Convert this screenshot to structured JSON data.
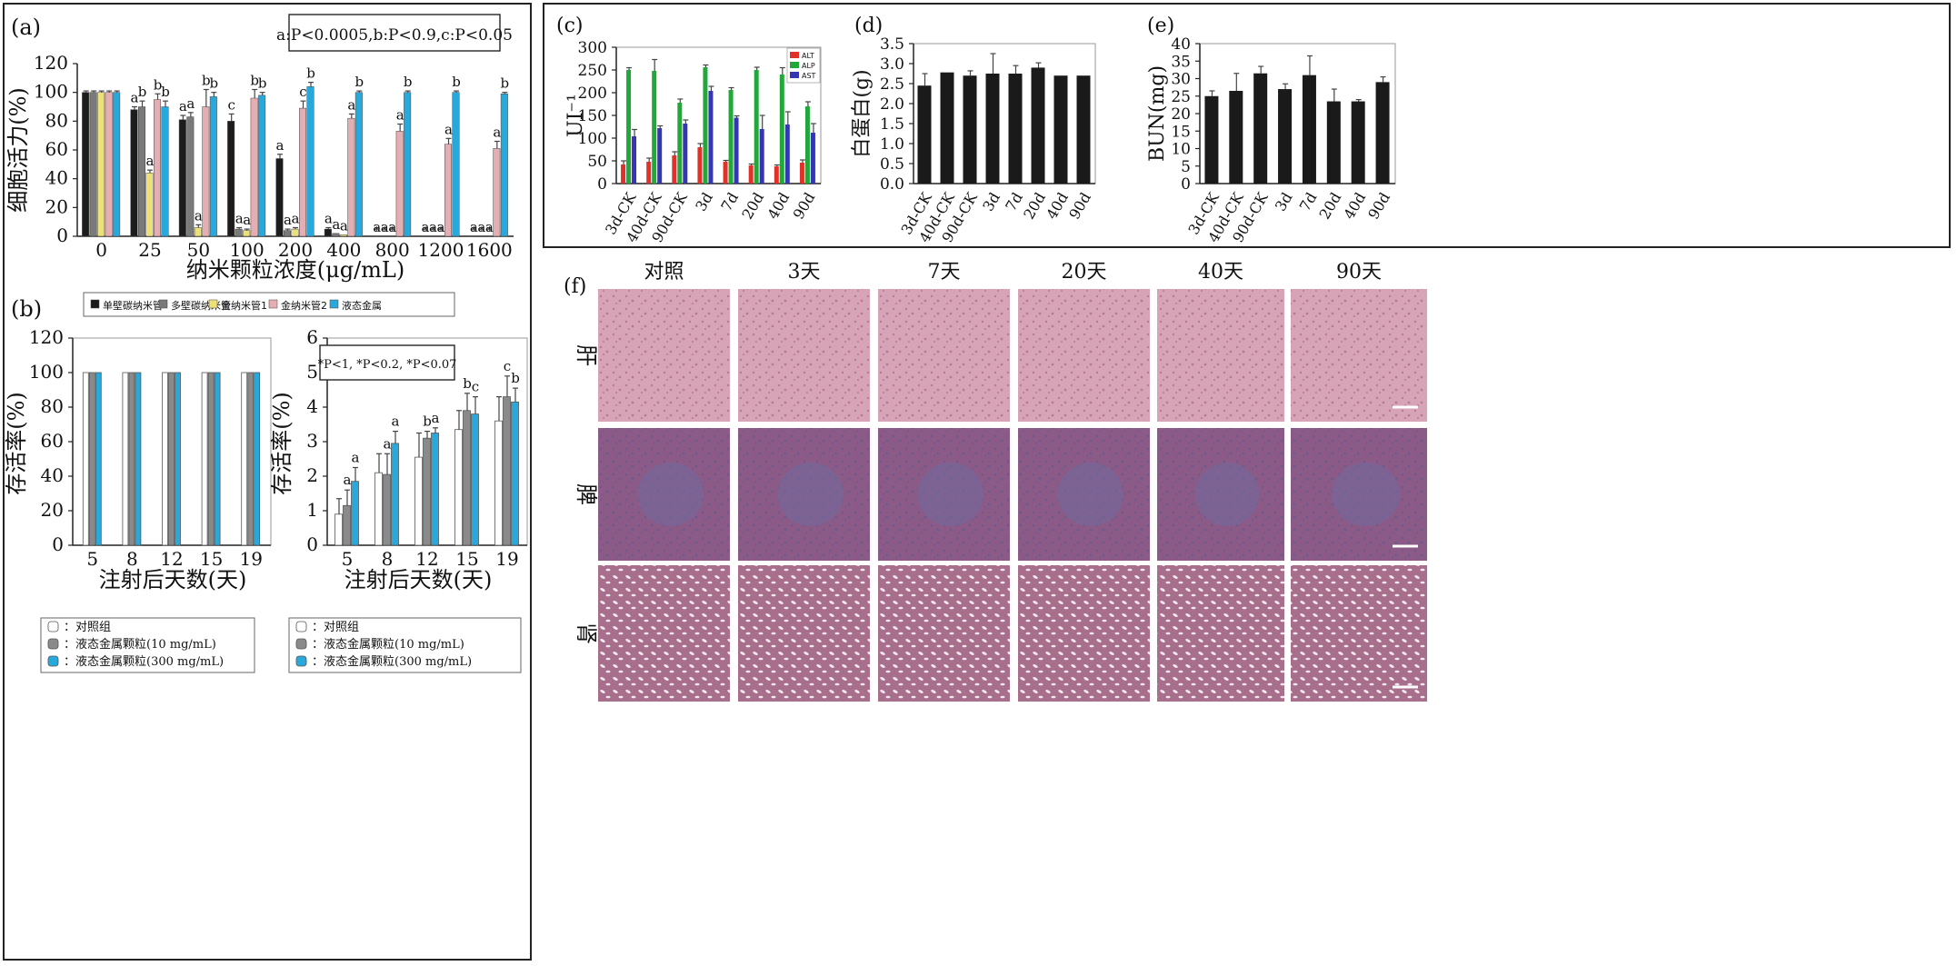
{
  "colors": {
    "swcnt": "#1c1c1c",
    "mwcnt": "#7a7a7a",
    "gnt1": "#ece07a",
    "gnt2": "#e4aeb2",
    "lm": "#29a8dc",
    "ctrl": "#ffffff",
    "lm10": "#8a8a8a",
    "lm300": "#29a8dc",
    "alt": "#e03228",
    "alp": "#22a83a",
    "ast": "#3636b4",
    "bar_black": "#1a1a1a",
    "tissue_liver": "#d7a3b6",
    "tissue_spleen": "#8c5a86",
    "tissue_kidney": "#a76f8c"
  },
  "panels": {
    "a": {
      "letter": "(a)",
      "pvalue_box": "a:P<0.0005,b:P<0.9,c:P<0.05",
      "legend": [
        "单壁碳纳米管",
        "多壁碳纳米管",
        "金纳米管1",
        "金纳米管2",
        "液态金属"
      ],
      "chart_data": {
        "type": "bar",
        "xlabel": "纳米颗粒浓度(μg/mL)",
        "ylabel": "细胞活力(%)",
        "categories": [
          "0",
          "25",
          "50",
          "100",
          "200",
          "400",
          "800",
          "1200",
          "1600"
        ],
        "ylim": [
          0,
          120
        ],
        "yticks": [
          "0",
          "20",
          "40",
          "60",
          "80",
          "100",
          "120"
        ],
        "series": [
          {
            "name": "单壁碳纳米管",
            "values": [
              100,
              88,
              81,
              80,
              54,
              5,
              0,
              0,
              0
            ],
            "errors": [
              1,
              2,
              3,
              5,
              3,
              1,
              0,
              0,
              0
            ],
            "sig": [
              "",
              "a",
              "a",
              "c",
              "a",
              "a",
              "a",
              "a",
              "a"
            ]
          },
          {
            "name": "多壁碳纳米管",
            "values": [
              100,
              90,
              83,
              5,
              4,
              2,
              0,
              0,
              0
            ],
            "errors": [
              1,
              4,
              3,
              1,
              1,
              0,
              0,
              0,
              0
            ],
            "sig": [
              "",
              "b",
              "a",
              "a",
              "a",
              "a",
              "a",
              "a",
              "a"
            ]
          },
          {
            "name": "金纳米管1",
            "values": [
              100,
              44,
              6,
              4,
              5,
              1,
              0,
              0,
              0
            ],
            "errors": [
              1,
              2,
              2,
              1,
              1,
              0,
              0,
              0,
              0
            ],
            "sig": [
              "",
              "a",
              "a",
              "a",
              "a",
              "a",
              "a",
              "a",
              "a"
            ]
          },
          {
            "name": "金纳米管2",
            "values": [
              100,
              95,
              90,
              96,
              89,
              82,
              73,
              64,
              61
            ],
            "errors": [
              1,
              4,
              12,
              6,
              5,
              3,
              5,
              4,
              5
            ],
            "sig": [
              "",
              "b",
              "b",
              "b",
              "c",
              "a",
              "a",
              "a",
              "a"
            ]
          },
          {
            "name": "液态金属",
            "values": [
              100,
              90,
              97,
              98,
              104,
              100,
              100,
              100,
              99
            ],
            "errors": [
              1,
              4,
              3,
              2,
              3,
              1,
              1,
              1,
              1
            ],
            "sig": [
              "",
              "b",
              "b",
              "b",
              "b",
              "b",
              "b",
              "b",
              "b"
            ]
          }
        ]
      }
    },
    "b": {
      "letter": "(b)",
      "left_chart": {
        "chart_data": {
          "type": "bar",
          "xlabel": "注射后天数(天)",
          "ylabel": "存活率(%)",
          "categories": [
            "5",
            "8",
            "12",
            "15",
            "19"
          ],
          "ylim": [
            0,
            120
          ],
          "yticks": [
            "0",
            "20",
            "40",
            "60",
            "80",
            "100",
            "120"
          ],
          "series": [
            {
              "name": "对照组",
              "values": [
                100,
                100,
                100,
                100,
                100
              ]
            },
            {
              "name": "液态金属颗粒(10 mg/mL)",
              "values": [
                100,
                100,
                100,
                100,
                100
              ]
            },
            {
              "name": "液态金属颗粒(300 mg/mL)",
              "values": [
                100,
                100,
                100,
                100,
                100
              ]
            }
          ]
        },
        "legend": [
          "对照组",
          "液态金属颗粒(10 mg/mL)",
          "液态金属颗粒(300 mg/mL)"
        ]
      },
      "right_chart": {
        "pvalue_box": "*P<1, *P<0.2, *P<0.07",
        "chart_data": {
          "type": "bar",
          "xlabel": "注射后天数(天)",
          "ylabel": "存活率(%)",
          "categories": [
            "5",
            "8",
            "12",
            "15",
            "19"
          ],
          "ylim": [
            0,
            6
          ],
          "yticks": [
            "0",
            "1",
            "2",
            "3",
            "4",
            "5",
            "6"
          ],
          "series": [
            {
              "name": "对照组",
              "values": [
                0.9,
                2.1,
                2.55,
                3.35,
                3.6
              ],
              "errors": [
                0.45,
                0.55,
                0.7,
                0.55,
                0.7
              ],
              "sig": [
                "",
                "",
                "",
                "",
                ""
              ]
            },
            {
              "name": "液态金属颗粒(10 mg/mL)",
              "values": [
                1.15,
                2.05,
                3.1,
                3.9,
                4.3
              ],
              "errors": [
                0.45,
                0.6,
                0.2,
                0.5,
                0.6
              ],
              "sig": [
                "a",
                "a",
                "b",
                "b",
                "c"
              ]
            },
            {
              "name": "液态金属颗粒(300 mg/mL)",
              "values": [
                1.85,
                2.95,
                3.25,
                3.8,
                4.15
              ],
              "errors": [
                0.4,
                0.35,
                0.15,
                0.5,
                0.4
              ],
              "sig": [
                "a",
                "a",
                "a",
                "c",
                "b"
              ]
            }
          ]
        },
        "legend": [
          "对照组",
          "液态金属颗粒(10 mg/mL)",
          "液态金属颗粒(300 mg/mL)"
        ]
      }
    },
    "c": {
      "letter": "(c)",
      "chart_data": {
        "type": "bar",
        "ylabel": "UI⁻¹",
        "categories": [
          "3d-CK",
          "40d-CK",
          "90d-CK",
          "3d",
          "7d",
          "20d",
          "40d",
          "90d"
        ],
        "ylim": [
          0,
          300
        ],
        "yticks": [
          "0",
          "50",
          "100",
          "150",
          "200",
          "250",
          "300"
        ],
        "series": [
          {
            "name": "ALT",
            "values": [
              42,
              48,
              62,
              80,
              48,
              40,
              38,
              46
            ],
            "errors": [
              8,
              8,
              8,
              8,
              3,
              3,
              3,
              6
            ]
          },
          {
            "name": "ALP",
            "values": [
              250,
              248,
              178,
              256,
              206,
              250,
              240,
              170
            ],
            "errors": [
              5,
              25,
              8,
              5,
              5,
              6,
              15,
              10
            ]
          },
          {
            "name": "AST",
            "values": [
              104,
              122,
              132,
              204,
              145,
              120,
              130,
              112
            ],
            "errors": [
              15,
              5,
              8,
              10,
              4,
              30,
              28,
              20
            ]
          }
        ]
      }
    },
    "d": {
      "letter": "(d)",
      "chart_data": {
        "type": "bar",
        "ylabel": "白蛋白(g)",
        "categories": [
          "3d-CK",
          "40d-CK",
          "90d-CK",
          "3d",
          "7d",
          "20d",
          "40d",
          "90d"
        ],
        "ylim": [
          0,
          3.5
        ],
        "yticks": [
          "0.0",
          "0.5",
          "1.0",
          "1.5",
          "2.0",
          "2.5",
          "3.0",
          "3.5"
        ],
        "series": [
          {
            "values": [
              2.45,
              2.78,
              2.7,
              2.75,
              2.75,
              2.9,
              2.7,
              2.7
            ],
            "errors": [
              0.3,
              0,
              0.12,
              0.5,
              0.2,
              0.12,
              0,
              0
            ]
          }
        ]
      }
    },
    "e": {
      "letter": "(e)",
      "chart_data": {
        "type": "bar",
        "ylabel": "BUN(mg)",
        "categories": [
          "3d-CK",
          "40d-CK",
          "90d-CK",
          "3d",
          "7d",
          "20d",
          "40d",
          "90d"
        ],
        "ylim": [
          0,
          40
        ],
        "yticks": [
          "0",
          "5",
          "10",
          "15",
          "20",
          "25",
          "30",
          "35",
          "40"
        ],
        "series": [
          {
            "values": [
              25,
              26.5,
              31.5,
              27,
              31,
              23.5,
              23.5,
              29
            ],
            "errors": [
              1.5,
              5,
              2,
              1.5,
              5.5,
              3.5,
              0.5,
              1.5
            ]
          }
        ]
      }
    },
    "f": {
      "letter": "(f)",
      "columns": [
        "对照",
        "3天",
        "7天",
        "20天",
        "40天",
        "90天"
      ],
      "rows": [
        "肝",
        "脾",
        "肾"
      ]
    }
  }
}
